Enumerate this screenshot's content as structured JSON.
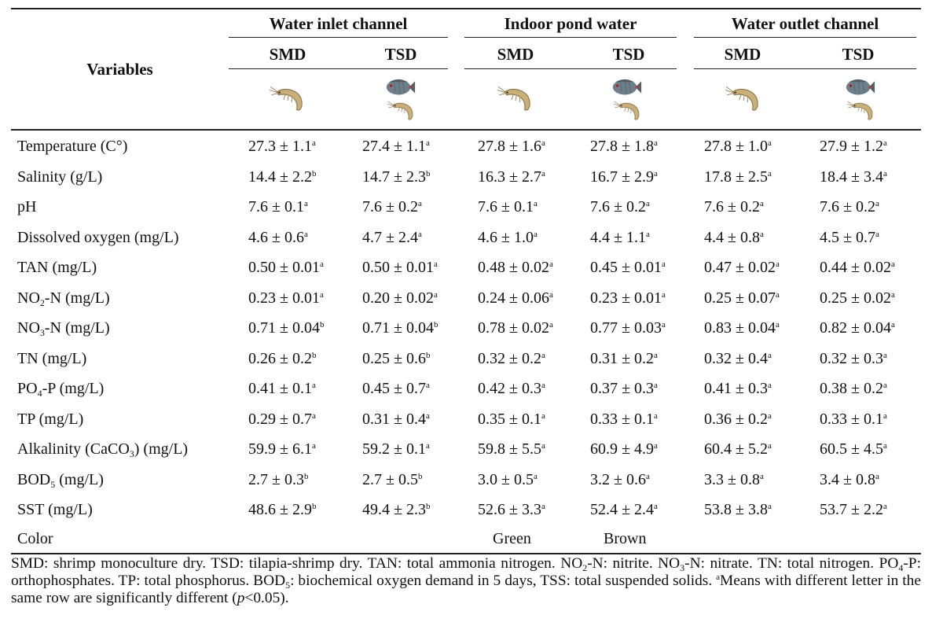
{
  "headers": {
    "variables": "Variables",
    "groups": [
      "Water inlet channel",
      "Indoor pond water",
      "Water outlet channel"
    ],
    "sub": [
      "SMD",
      "TSD",
      "SMD",
      "TSD",
      "SMD",
      "TSD"
    ]
  },
  "rows": [
    {
      "label_pre": "Temperature (C°)",
      "label_sub": "",
      "label_post": "",
      "values": [
        [
          "27.3 ± 1.1",
          "a"
        ],
        [
          "27.4 ± 1.1",
          "a"
        ],
        [
          "27.8 ± 1.6",
          "a"
        ],
        [
          "27.8 ± 1.8",
          "a"
        ],
        [
          "27.8 ± 1.0",
          "a"
        ],
        [
          "27.9 ± 1.2",
          "a"
        ]
      ]
    },
    {
      "label_pre": "Salinity (g/L)",
      "label_sub": "",
      "label_post": "",
      "values": [
        [
          "14.4 ± 2.2",
          "b"
        ],
        [
          "14.7 ± 2.3",
          "b"
        ],
        [
          "16.3 ± 2.7",
          "a"
        ],
        [
          "16.7 ± 2.9",
          "a"
        ],
        [
          "17.8 ± 2.5",
          "a"
        ],
        [
          "18.4 ± 3.4",
          "a"
        ]
      ]
    },
    {
      "label_pre": "pH",
      "label_sub": "",
      "label_post": "",
      "values": [
        [
          "7.6 ± 0.1",
          "a"
        ],
        [
          "7.6 ± 0.2",
          "a"
        ],
        [
          "7.6 ± 0.1",
          "a"
        ],
        [
          "7.6 ± 0.2",
          "a"
        ],
        [
          "7.6 ± 0.2",
          "a"
        ],
        [
          "7.6 ± 0.2",
          "a"
        ]
      ]
    },
    {
      "label_pre": "Dissolved oxygen (mg/L)",
      "label_sub": "",
      "label_post": "",
      "values": [
        [
          "4.6 ± 0.6",
          "a"
        ],
        [
          "4.7 ± 2.4",
          "a"
        ],
        [
          "4.6 ± 1.0",
          "a"
        ],
        [
          "4.4 ± 1.1",
          "a"
        ],
        [
          "4.4 ± 0.8",
          "a"
        ],
        [
          "4.5 ± 0.7",
          "a"
        ]
      ]
    },
    {
      "label_pre": "TAN (mg/L)",
      "label_sub": "",
      "label_post": "",
      "values": [
        [
          "0.50 ± 0.01",
          "a"
        ],
        [
          "0.50 ± 0.01",
          "a"
        ],
        [
          "0.48 ± 0.02",
          "a"
        ],
        [
          "0.45 ± 0.01",
          "a"
        ],
        [
          "0.47 ± 0.02",
          "a"
        ],
        [
          "0.44 ± 0.02",
          "a"
        ]
      ]
    },
    {
      "label_pre": "NO",
      "label_sub": "2",
      "label_post": "-N (mg/L)",
      "values": [
        [
          "0.23 ± 0.01",
          "a"
        ],
        [
          "0.20 ± 0.02",
          "a"
        ],
        [
          "0.24 ± 0.06",
          "a"
        ],
        [
          "0.23 ± 0.01",
          "a"
        ],
        [
          "0.25 ± 0.07",
          "a"
        ],
        [
          "0.25 ± 0.02",
          "a"
        ]
      ]
    },
    {
      "label_pre": "NO",
      "label_sub": "3",
      "label_post": "-N (mg/L)",
      "values": [
        [
          "0.71 ± 0.04",
          "b"
        ],
        [
          "0.71 ± 0.04",
          "b"
        ],
        [
          "0.78 ± 0.02",
          "a"
        ],
        [
          "0.77 ± 0.03",
          "a"
        ],
        [
          "0.83 ± 0.04",
          "a"
        ],
        [
          "0.82 ± 0.04",
          "a"
        ]
      ]
    },
    {
      "label_pre": "TN (mg/L)",
      "label_sub": "",
      "label_post": "",
      "values": [
        [
          "0.26 ± 0.2",
          "b"
        ],
        [
          "0.25 ± 0.6",
          "b"
        ],
        [
          "0.32 ± 0.2",
          "a"
        ],
        [
          "0.31 ± 0.2",
          "a"
        ],
        [
          "0.32 ± 0.4",
          "a"
        ],
        [
          "0.32 ± 0.3",
          "a"
        ]
      ]
    },
    {
      "label_pre": "PO",
      "label_sub": "4",
      "label_post": "-P (mg/L)",
      "values": [
        [
          "0.41 ± 0.1",
          "a"
        ],
        [
          "0.45 ± 0.7",
          "a"
        ],
        [
          "0.42 ± 0.3",
          "a"
        ],
        [
          "0.37 ± 0.3",
          "a"
        ],
        [
          "0.41 ± 0.3",
          "a"
        ],
        [
          "0.38 ± 0.2",
          "a"
        ]
      ]
    },
    {
      "label_pre": "TP (mg/L)",
      "label_sub": "",
      "label_post": "",
      "values": [
        [
          "0.29 ± 0.7",
          "a"
        ],
        [
          "0.31 ± 0.4",
          "a"
        ],
        [
          "0.35 ± 0.1",
          "a"
        ],
        [
          "0.33 ± 0.1",
          "a"
        ],
        [
          "0.36 ± 0.2",
          "a"
        ],
        [
          "0.33 ± 0.1",
          "a"
        ]
      ]
    },
    {
      "label_pre": "Alkalinity (CaCO",
      "label_sub": "3",
      "label_post": ") (mg/L)",
      "values": [
        [
          "59.9 ± 6.1",
          "a"
        ],
        [
          "59.2 ± 0.1",
          "a"
        ],
        [
          "59.8 ± 5.5",
          "a"
        ],
        [
          "60.9 ± 4.9",
          "a"
        ],
        [
          "60.4 ± 5.2",
          "a"
        ],
        [
          "60.5 ± 4.5",
          "a"
        ]
      ]
    },
    {
      "label_pre": "BOD",
      "label_sub": "5",
      "label_post": " (mg/L)",
      "values": [
        [
          "2.7 ± 0.3",
          "b"
        ],
        [
          "2.7 ± 0.5",
          "b"
        ],
        [
          "3.0 ± 0.5",
          "a"
        ],
        [
          "3.2 ± 0.6",
          "a"
        ],
        [
          "3.3 ± 0.8",
          "a"
        ],
        [
          "3.4 ± 0.8",
          "a"
        ]
      ]
    },
    {
      "label_pre": "SST (mg/L)",
      "label_sub": "",
      "label_post": "",
      "values": [
        [
          "48.6 ± 2.9",
          "b"
        ],
        [
          "49.4 ± 2.3",
          "b"
        ],
        [
          "52.6 ± 3.3",
          "a"
        ],
        [
          "52.4 ± 2.4",
          "a"
        ],
        [
          "53.8 ± 3.8",
          "a"
        ],
        [
          "53.7 ± 2.2",
          "a"
        ]
      ]
    }
  ],
  "color_row": {
    "label": "Color",
    "values": [
      "",
      "",
      "Green",
      "Brown",
      "",
      ""
    ]
  },
  "footnote": {
    "p1": "SMD: shrimp monoculture dry. TSD: tilapia-shrimp dry. TAN: total ammonia nitrogen. NO",
    "s1": "2",
    "p2": "-N: nitrite. NO",
    "s2": "3",
    "p3": "-N: nitrate. TN: total nitrogen. PO",
    "s3": "4",
    "p4": "-P: orthophosphates. TP: total phosphorus. BOD",
    "s4": "5",
    "p5": ": biochemical oxygen demand in 5 days, TSS: total suspended solids. ",
    "sup": "a",
    "p6": "Means with different letter in the same row are significantly different (",
    "pital": "p",
    "p7": "<0.05)."
  },
  "icons": [
    "shrimp-icon",
    "tilapia-fish-icon"
  ],
  "colors": {
    "shrimp": "#c9b07a",
    "fish_body": "#6c7f8a",
    "fish_accent": "#c0392b"
  }
}
